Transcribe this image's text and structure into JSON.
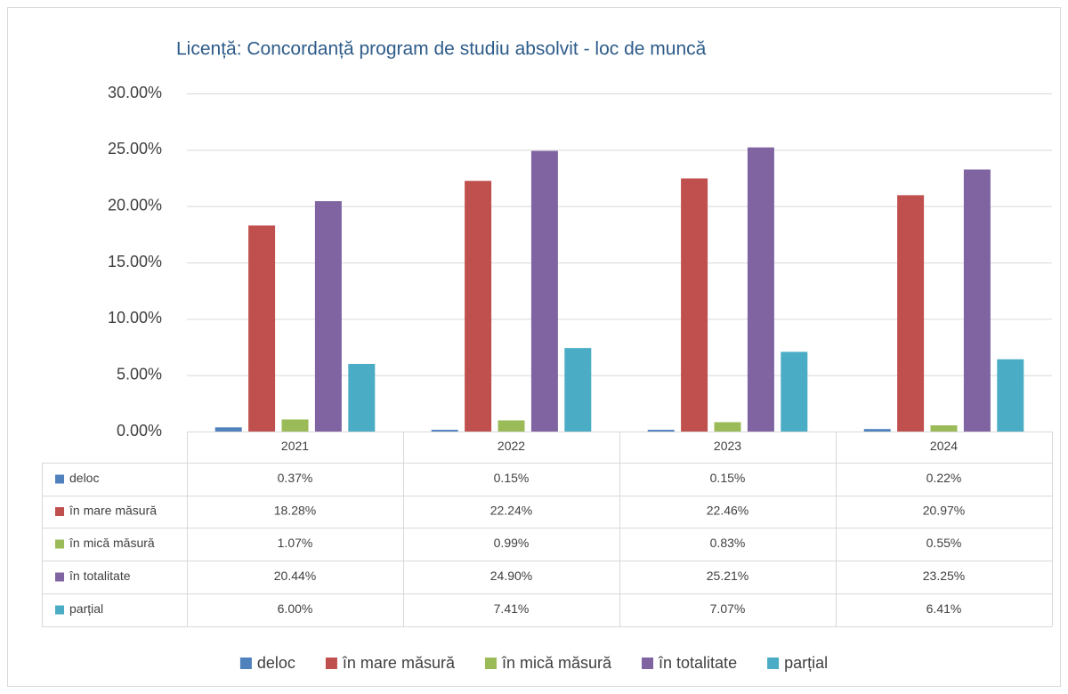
{
  "chart_data": {
    "type": "bar",
    "title": "Licență: Concordanță program de studiu absolvit - loc de muncă",
    "categories": [
      "2021",
      "2022",
      "2023",
      "2024"
    ],
    "series": [
      {
        "name": "deloc",
        "color": "#4f81bd",
        "values": [
          0.37,
          0.15,
          0.15,
          0.22
        ],
        "value_labels": [
          "0.37%",
          "0.15%",
          "0.15%",
          "0.22%"
        ]
      },
      {
        "name": "în mare măsură",
        "color": "#c0504d",
        "values": [
          18.28,
          22.24,
          22.46,
          20.97
        ],
        "value_labels": [
          "18.28%",
          "22.24%",
          "22.46%",
          "20.97%"
        ]
      },
      {
        "name": "în mică măsură",
        "color": "#9bbb59",
        "values": [
          1.07,
          0.99,
          0.83,
          0.55
        ],
        "value_labels": [
          "1.07%",
          "0.99%",
          "0.83%",
          "0.55%"
        ]
      },
      {
        "name": "în totalitate",
        "color": "#8064a2",
        "values": [
          20.44,
          24.9,
          25.21,
          23.25
        ],
        "value_labels": [
          "20.44%",
          "24.90%",
          "25.21%",
          "23.25%"
        ]
      },
      {
        "name": "parțial",
        "color": "#4bacc6",
        "values": [
          6.0,
          7.41,
          7.07,
          6.41
        ],
        "value_labels": [
          "6.00%",
          "7.41%",
          "7.07%",
          "6.41%"
        ]
      }
    ],
    "ylim": [
      0,
      30
    ],
    "yticks": [
      {
        "value": 0,
        "label": "0.00%"
      },
      {
        "value": 5,
        "label": "5.00%"
      },
      {
        "value": 10,
        "label": "10.00%"
      },
      {
        "value": 15,
        "label": "15.00%"
      },
      {
        "value": 20,
        "label": "20.00%"
      },
      {
        "value": 25,
        "label": "25.00%"
      },
      {
        "value": 30,
        "label": "30.00%"
      }
    ],
    "grid": true,
    "legend": "bottom",
    "data_table": true
  }
}
